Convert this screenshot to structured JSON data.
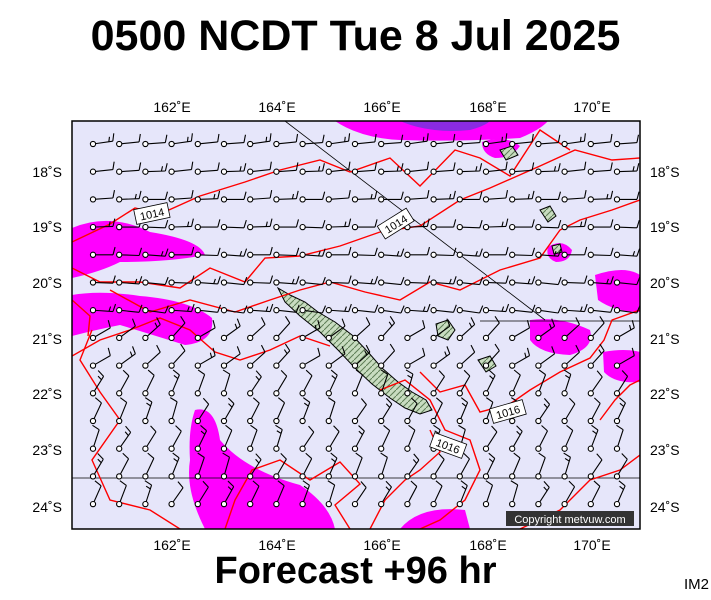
{
  "title": "0500 NCDT Tue 8 Jul 2025",
  "subtitle": "Forecast +96 hr",
  "corner_label": "IM2",
  "copyright": "Copyright metvuw.com",
  "map": {
    "lon_range": [
      160.0,
      170.8
    ],
    "lat_range": [
      -24.4,
      -17.0
    ],
    "lon_ticks": [
      "162˚E",
      "164˚E",
      "166˚E",
      "168˚E",
      "170˚E"
    ],
    "lat_ticks": [
      "18˚S",
      "19˚S",
      "20˚S",
      "21˚S",
      "22˚S",
      "23˚S",
      "24˚S"
    ],
    "isobar_labels": [
      "1014",
      "1014",
      "1016",
      "1016"
    ],
    "colors": {
      "background": "#e6e6fa",
      "precip": "#ff00ff",
      "precip_heavy": "#8a2be2",
      "isobar": "#ff0000",
      "land": "#c8dcc0",
      "wind": "#000000"
    }
  }
}
